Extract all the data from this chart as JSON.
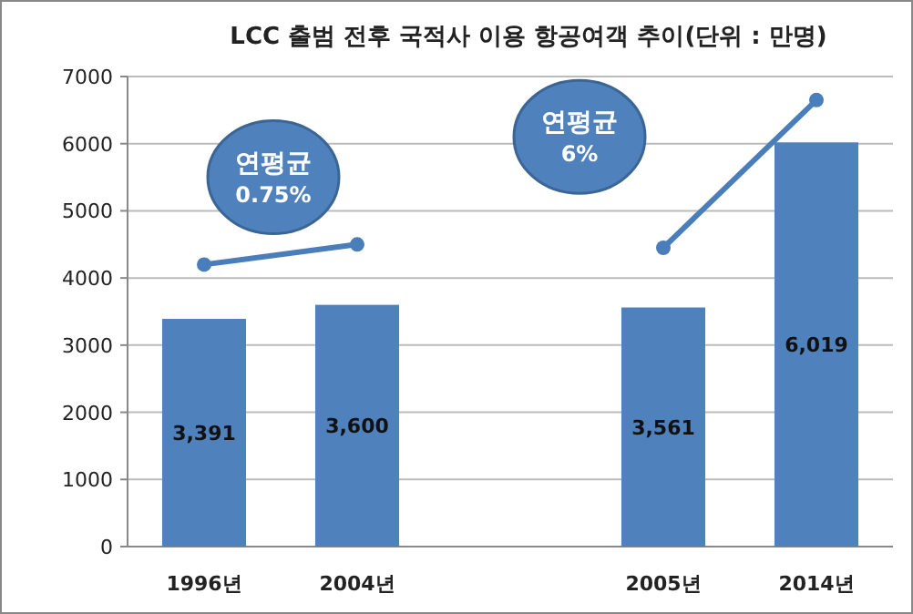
{
  "chart_data": {
    "type": "bar",
    "title": "LCC 출범 전후 국적사 이용 항공여객 추이(단위 : 만명)",
    "categories": [
      "1996년",
      "2004년",
      null,
      "2005년",
      "2014년"
    ],
    "series": [
      {
        "color": "#4f81bd",
        "values": [
          3391,
          3600,
          null,
          3561,
          6019
        ],
        "value_labels": [
          "3,391",
          "3,600",
          null,
          "3,561",
          "6,019"
        ]
      },
      {
        "type": "line",
        "color": "#4a7ebb",
        "values": [
          4200,
          4500,
          null,
          null,
          null
        ],
        "marker": "circle"
      },
      {
        "type": "line",
        "color": "#4a7ebb",
        "values": [
          null,
          null,
          null,
          4450,
          6650
        ],
        "marker": "circle"
      }
    ],
    "annotations": [
      "연평균\n0.75%",
      "연평균\n6%"
    ],
    "ylim": [
      0,
      7000
    ],
    "yticks": [
      0,
      1000,
      2000,
      3000,
      4000,
      5000,
      6000,
      7000
    ],
    "grid": "y"
  }
}
